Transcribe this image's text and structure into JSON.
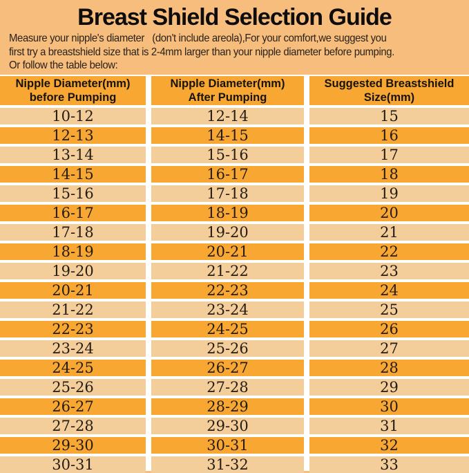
{
  "page": {
    "title": "Breast Shield Selection Guide",
    "intro_lines": [
      "Measure your nipple's diameter   (don't include areola),For your comfort,we suggest you",
      "first try a breastshield size that is 2-4mm larger than your nipple diameter before pumping.",
      "Or follow the table below:"
    ]
  },
  "colors": {
    "background": "#F6BD7C",
    "header_row": "#F8A733",
    "row_light": "#F3CE9B",
    "row_dark": "#F8A733",
    "separator": "#FFFFFF",
    "text": "#1E1813"
  },
  "table": {
    "columns": [
      {
        "line1": "Nipple Diameter(mm)",
        "line2": "before Pumping"
      },
      {
        "line1": "Nipple Diameter(mm)",
        "line2": "After Pumping"
      },
      {
        "line1": "Suggested Breastshield",
        "line2": "Size(mm)"
      }
    ],
    "rows": [
      [
        "10-12",
        "12-14",
        "15"
      ],
      [
        "12-13",
        "14-15",
        "16"
      ],
      [
        "13-14",
        "15-16",
        "17"
      ],
      [
        "14-15",
        "16-17",
        "18"
      ],
      [
        "15-16",
        "17-18",
        "19"
      ],
      [
        "16-17",
        "18-19",
        "20"
      ],
      [
        "17-18",
        "19-20",
        "21"
      ],
      [
        "18-19",
        "20-21",
        "22"
      ],
      [
        "19-20",
        "21-22",
        "23"
      ],
      [
        "20-21",
        "22-23",
        "24"
      ],
      [
        "21-22",
        "23-24",
        "25"
      ],
      [
        "22-23",
        "24-25",
        "26"
      ],
      [
        "23-24",
        "25-26",
        "27"
      ],
      [
        "24-25",
        "26-27",
        "28"
      ],
      [
        "25-26",
        "27-28",
        "29"
      ],
      [
        "26-27",
        "28-29",
        "30"
      ],
      [
        "27-28",
        "29-30",
        "31"
      ],
      [
        "29-30",
        "30-31",
        "32"
      ],
      [
        "30-31",
        "31-32",
        "33"
      ]
    ]
  }
}
